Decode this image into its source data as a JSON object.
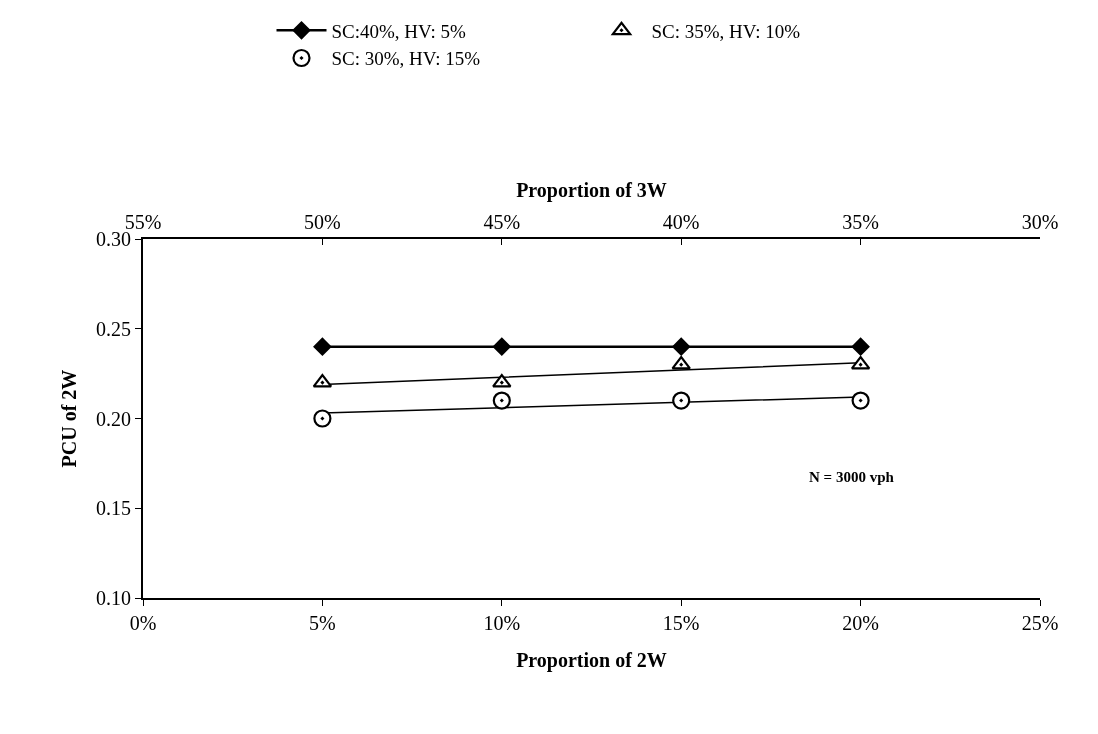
{
  "chart_data": {
    "type": "scatter",
    "xlabel": "Proportion of 2W",
    "x2label": "Proportion of 3W",
    "ylabel": "PCU of 2W",
    "x": [
      5,
      10,
      15,
      20
    ],
    "series": [
      {
        "name": "SC:40%, HV: 5%",
        "type": "line",
        "color": "#000000",
        "marker": "diamond",
        "values": [
          0.24,
          0.24,
          0.24,
          0.24
        ]
      },
      {
        "name": "SC: 35%, HV: 10%",
        "color": "#000000",
        "marker": "triangle",
        "values": [
          0.22,
          0.22,
          0.23,
          0.23
        ]
      },
      {
        "name": "SC: 30%, HV: 15%",
        "color": "#000000",
        "marker": "circle",
        "values": [
          0.2,
          0.21,
          0.21,
          0.21
        ]
      },
      {
        "type": "line",
        "color": "#000000",
        "marker": "none",
        "values": [
          0.219,
          0.223,
          0.227,
          0.231
        ]
      },
      {
        "type": "line",
        "color": "#000000",
        "marker": "none",
        "values": [
          0.203,
          0.206,
          0.209,
          0.212
        ]
      }
    ],
    "xlim": [
      0,
      25
    ],
    "xticks": [
      {
        "value": 0,
        "label": "0%"
      },
      {
        "value": 5,
        "label": "5%"
      },
      {
        "value": 10,
        "label": "10%"
      },
      {
        "value": 15,
        "label": "15%"
      },
      {
        "value": 20,
        "label": "20%"
      },
      {
        "value": 25,
        "label": "25%"
      }
    ],
    "x2lim": [
      55,
      30
    ],
    "x2ticks": [
      {
        "value": 55,
        "label": "55%"
      },
      {
        "value": 50,
        "label": "50%"
      },
      {
        "value": 45,
        "label": "45%"
      },
      {
        "value": 40,
        "label": "40%"
      },
      {
        "value": 35,
        "label": "35%"
      },
      {
        "value": 30,
        "label": "30%"
      }
    ],
    "ylim": [
      0.1,
      0.3
    ],
    "yticks": [
      {
        "value": 0.1,
        "label": "0.10"
      },
      {
        "value": 0.15,
        "label": "0.15"
      },
      {
        "value": 0.2,
        "label": "0.20"
      },
      {
        "value": 0.25,
        "label": "0.25"
      },
      {
        "value": 0.3,
        "label": "0.30"
      }
    ],
    "annotations": [
      "N = 3000 vph"
    ],
    "grid": false,
    "legend": "top"
  }
}
